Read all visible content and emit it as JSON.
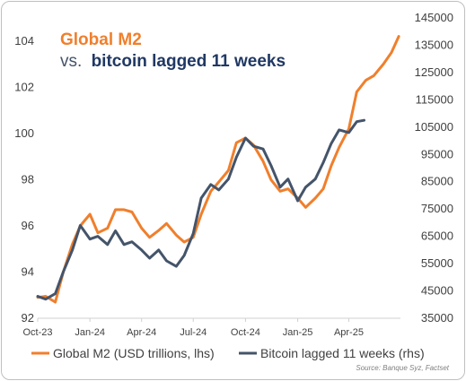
{
  "chart_data": {
    "type": "line",
    "title_line1": "Global M2",
    "title_line2_prefix": "vs.",
    "title_line2_rest": "bitcoin lagged 11 weeks",
    "x_ticks": [
      "Oct-23",
      "Jan-24",
      "Apr-24",
      "Jul-24",
      "Oct-24",
      "Jan-25",
      "Apr-25"
    ],
    "x_range": [
      "2023-10-01",
      "2025-07-01"
    ],
    "left_axis": {
      "ticks": [
        92,
        94,
        96,
        98,
        100,
        102,
        104
      ],
      "range": [
        92,
        105
      ]
    },
    "right_axis": {
      "ticks": [
        35000,
        45000,
        55000,
        65000,
        75000,
        85000,
        95000,
        105000,
        115000,
        125000,
        135000,
        145000
      ],
      "range": [
        35000,
        145000
      ]
    },
    "series": [
      {
        "name": "Global M2 (USD trillions, lhs)",
        "axis": "left",
        "color": "#f07f2c",
        "x": [
          "2023-10-01",
          "2023-10-15",
          "2023-11-01",
          "2023-11-15",
          "2023-12-01",
          "2023-12-15",
          "2024-01-01",
          "2024-01-15",
          "2024-02-01",
          "2024-02-15",
          "2024-03-01",
          "2024-03-15",
          "2024-04-01",
          "2024-04-15",
          "2024-05-01",
          "2024-05-15",
          "2024-06-01",
          "2024-06-15",
          "2024-07-01",
          "2024-07-15",
          "2024-08-01",
          "2024-08-15",
          "2024-09-01",
          "2024-09-15",
          "2024-10-01",
          "2024-10-15",
          "2024-11-01",
          "2024-11-15",
          "2024-12-01",
          "2024-12-15",
          "2025-01-01",
          "2025-01-15",
          "2025-02-01",
          "2025-02-15",
          "2025-03-01",
          "2025-03-15",
          "2025-04-01",
          "2025-04-15",
          "2025-05-01",
          "2025-05-15",
          "2025-06-01",
          "2025-06-15",
          "2025-06-28"
        ],
        "values": [
          92.9,
          92.95,
          92.7,
          94.0,
          95.2,
          96.0,
          96.5,
          95.7,
          95.9,
          96.7,
          96.7,
          96.6,
          95.9,
          95.5,
          95.8,
          96.1,
          95.6,
          95.3,
          95.5,
          96.5,
          97.5,
          97.9,
          98.4,
          99.6,
          99.8,
          99.5,
          98.8,
          98.0,
          97.5,
          97.6,
          97.2,
          96.8,
          97.2,
          97.6,
          98.6,
          99.4,
          100.2,
          101.8,
          102.3,
          102.5,
          103.0,
          103.5,
          104.2
        ]
      },
      {
        "name": "Bitcoin lagged 11 weeks (rhs)",
        "axis": "right",
        "color": "#44546a",
        "x": [
          "2023-10-01",
          "2023-10-15",
          "2023-11-01",
          "2023-11-15",
          "2023-12-01",
          "2023-12-15",
          "2024-01-01",
          "2024-01-15",
          "2024-02-01",
          "2024-02-15",
          "2024-03-01",
          "2024-03-15",
          "2024-04-01",
          "2024-04-15",
          "2024-05-01",
          "2024-05-15",
          "2024-06-01",
          "2024-06-15",
          "2024-07-01",
          "2024-07-15",
          "2024-08-01",
          "2024-08-15",
          "2024-09-01",
          "2024-09-15",
          "2024-10-01",
          "2024-10-15",
          "2024-11-01",
          "2024-11-15",
          "2024-12-01",
          "2024-12-15",
          "2025-01-01",
          "2025-01-15",
          "2025-02-01",
          "2025-02-15",
          "2025-03-01",
          "2025-03-15",
          "2025-04-01",
          "2025-04-15",
          "2025-04-28"
        ],
        "values": [
          43000,
          42000,
          44000,
          52000,
          60000,
          69000,
          64000,
          65000,
          62000,
          67000,
          62000,
          63000,
          60000,
          57000,
          60000,
          56000,
          54000,
          58000,
          66000,
          79000,
          84000,
          82000,
          86000,
          94000,
          101000,
          98000,
          97000,
          91000,
          83000,
          86000,
          78000,
          83000,
          86000,
          92000,
          99000,
          104000,
          103000,
          107000,
          107500
        ]
      }
    ],
    "legend_position": "bottom",
    "source": "Source: Banque Syz, Factset"
  }
}
